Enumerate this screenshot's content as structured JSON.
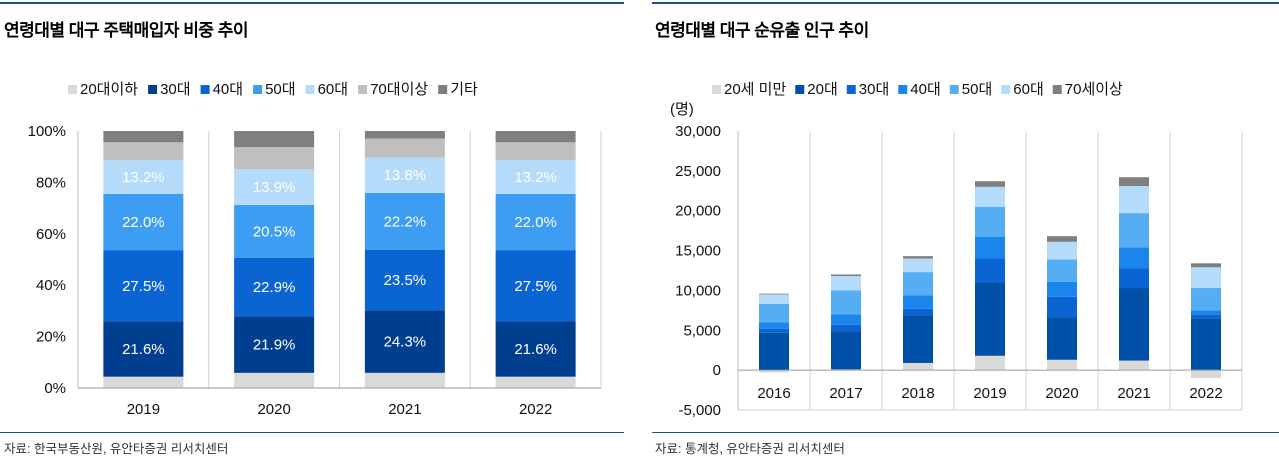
{
  "left_panel": {
    "title": "연령대별 대구 주택매입자 비중 추이",
    "source": "자료: 한국부동산원, 유안타증권 리서치센터"
  },
  "right_panel": {
    "title": "연령대별 대구 순유출 인구 추이",
    "source": "자료: 통계청, 유안타증권 리서치센터"
  },
  "chart_data": [
    {
      "type": "bar",
      "stacked": true,
      "percent": true,
      "title": "연령대별 대구 주택매입자 비중 추이",
      "categories": [
        "2019",
        "2020",
        "2021",
        "2022"
      ],
      "ylim": [
        0,
        100
      ],
      "yticks": [
        "0%",
        "20%",
        "40%",
        "60%",
        "80%",
        "100%"
      ],
      "legend_position": "top",
      "series": [
        {
          "name": "20대이하",
          "color": "#d9d9d9",
          "values": [
            4.4,
            5.9,
            5.9,
            4.4
          ]
        },
        {
          "name": "30대",
          "color": "#003f8f",
          "values": [
            21.6,
            21.9,
            24.3,
            21.6
          ]
        },
        {
          "name": "40대",
          "color": "#0a64d2",
          "values": [
            27.5,
            22.9,
            23.5,
            27.5
          ]
        },
        {
          "name": "50대",
          "color": "#3d9df2",
          "values": [
            22.0,
            20.5,
            22.2,
            22.0
          ]
        },
        {
          "name": "60대",
          "color": "#b4dcfa",
          "values": [
            13.2,
            13.9,
            13.8,
            13.2
          ]
        },
        {
          "name": "70대이상",
          "color": "#bfbfbf",
          "values": [
            6.9,
            8.6,
            7.4,
            6.9
          ]
        },
        {
          "name": "기타",
          "color": "#7f7f7f",
          "values": [
            4.4,
            6.3,
            2.9,
            4.4
          ]
        }
      ],
      "data_labels": [
        {
          "series": "30대",
          "labels": [
            "21.6%",
            "21.9%",
            "24.3%",
            "21.6%"
          ]
        },
        {
          "series": "40대",
          "labels": [
            "27.5%",
            "22.9%",
            "23.5%",
            "27.5%"
          ]
        },
        {
          "series": "50대",
          "labels": [
            "22.0%",
            "20.5%",
            "22.2%",
            "22.0%"
          ]
        },
        {
          "series": "60대",
          "labels": [
            "13.2%",
            "13.9%",
            "13.8%",
            "13.2%"
          ]
        }
      ]
    },
    {
      "type": "bar",
      "stacked": true,
      "title": "연령대별 대구 순유출 인구 추이",
      "categories": [
        "2016",
        "2017",
        "2018",
        "2019",
        "2020",
        "2021",
        "2022"
      ],
      "ylabel": "(명)",
      "ylim": [
        -5000,
        30000
      ],
      "yticks": [
        "-5,000",
        "0",
        "5,000",
        "10,000",
        "15,000",
        "20,000",
        "25,000",
        "30,000"
      ],
      "legend_position": "top",
      "series": [
        {
          "name": "20세 미만",
          "color": "#d9d9d9",
          "values": [
            -300,
            100,
            900,
            1800,
            1300,
            1200,
            -1000
          ]
        },
        {
          "name": "20대",
          "color": "#0050a8",
          "values": [
            4700,
            4800,
            6000,
            9200,
            5300,
            9100,
            6500
          ]
        },
        {
          "name": "30대",
          "color": "#0a64d2",
          "values": [
            500,
            800,
            800,
            3000,
            2600,
            2500,
            500
          ]
        },
        {
          "name": "40대",
          "color": "#1a86ec",
          "values": [
            800,
            1300,
            1700,
            2700,
            1900,
            2600,
            500
          ]
        },
        {
          "name": "50대",
          "color": "#55adf4",
          "values": [
            2300,
            3000,
            2900,
            3800,
            2800,
            4300,
            2800
          ]
        },
        {
          "name": "60대",
          "color": "#b4dcfa",
          "values": [
            1200,
            1800,
            1700,
            2500,
            2200,
            3400,
            2600
          ]
        },
        {
          "name": "70세이상",
          "color": "#7f7f7f",
          "values": [
            100,
            200,
            300,
            700,
            700,
            1100,
            500
          ]
        }
      ]
    }
  ]
}
